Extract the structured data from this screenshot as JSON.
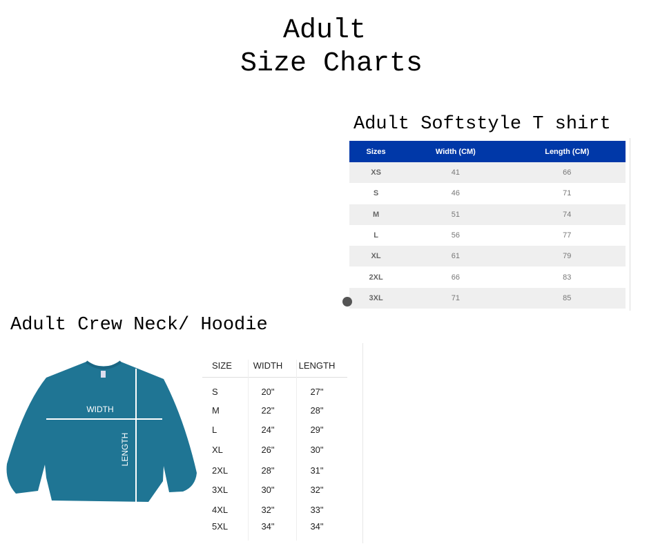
{
  "title": {
    "line1": "Adult",
    "line2": "Size Charts"
  },
  "softstyle": {
    "title": "Adult Softstyle T shirt",
    "header_color": "#0038a8",
    "columns": [
      "Sizes",
      "Width (CM)",
      "Length (CM)"
    ],
    "rows": [
      [
        "XS",
        "41",
        "66"
      ],
      [
        "S",
        "46",
        "71"
      ],
      [
        "M",
        "51",
        "74"
      ],
      [
        "L",
        "56",
        "77"
      ],
      [
        "XL",
        "61",
        "79"
      ],
      [
        "2XL",
        "66",
        "83"
      ],
      [
        "3XL",
        "71",
        "85"
      ]
    ]
  },
  "crewneck": {
    "title": "Adult Crew Neck/ Hoodie",
    "garment_color": "#1f7594",
    "diagram_labels": {
      "width": "WIDTH",
      "length": "LENGTH"
    },
    "columns": [
      "SIZE",
      "WIDTH",
      "LENGTH"
    ],
    "rows": [
      [
        "S",
        "20\"",
        "27\""
      ],
      [
        "M",
        "22\"",
        "28\""
      ],
      [
        "L",
        "24\"",
        "29\""
      ],
      [
        "XL",
        "26\"",
        "30\""
      ],
      [
        "2XL",
        "28\"",
        "31\""
      ],
      [
        "3XL",
        "30\"",
        "32\""
      ],
      [
        "4XL",
        "32\"",
        "33\""
      ],
      [
        "5XL",
        "34\"",
        "34\""
      ]
    ]
  }
}
